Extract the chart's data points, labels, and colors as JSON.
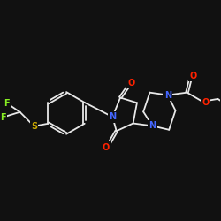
{
  "bg_color": "#111111",
  "bond_color": "#e8e8e8",
  "atom_colors": {
    "N": "#4466ff",
    "O": "#ff2200",
    "F": "#88ee22",
    "S": "#ccaa00"
  },
  "bond_width": 1.3,
  "font_size_atom": 7.0
}
